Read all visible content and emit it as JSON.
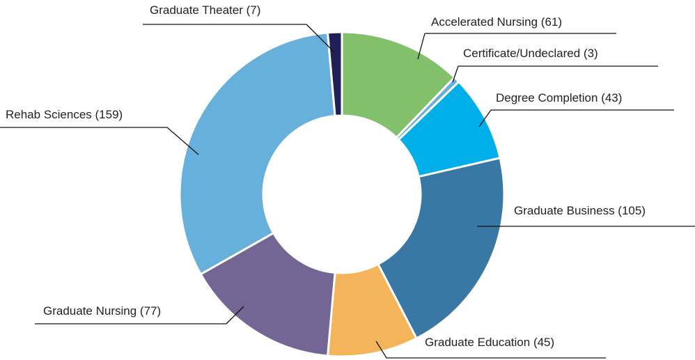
{
  "chart_data": {
    "type": "donut",
    "categories": [
      "Accelerated Nursing (61)",
      "Certificate/Undeclared (3)",
      "Degree Completion (43)",
      "Graduate Business (105)",
      "Graduate Education (45)",
      "Graduate Nursing (77)",
      "Rehab Sciences (159)",
      "Graduate Theater (7)"
    ],
    "values": [
      61,
      3,
      43,
      105,
      45,
      77,
      159,
      7
    ],
    "colors": [
      "#82c06c",
      "#6aaee0",
      "#00aee8",
      "#3978a5",
      "#f4b459",
      "#736694",
      "#66b0db",
      "#1f1f5a"
    ]
  }
}
